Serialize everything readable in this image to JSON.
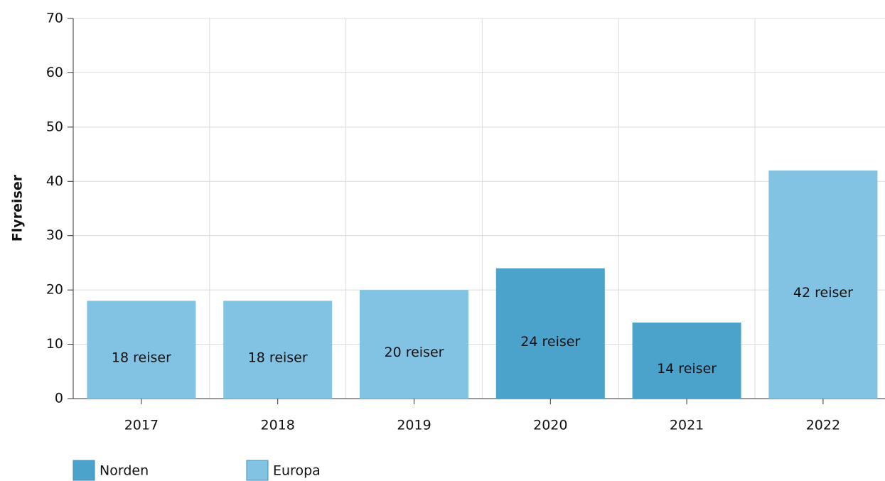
{
  "chart_data": {
    "type": "bar",
    "y_label": "Flyreiser",
    "categories": [
      "2017",
      "2018",
      "2019",
      "2020",
      "2021",
      "2022"
    ],
    "series": [
      {
        "name": "Norden",
        "color": "#4ba3cc",
        "values": [
          null,
          null,
          null,
          24,
          14,
          null
        ],
        "value_labels": [
          null,
          null,
          null,
          "24 reiser",
          "14 reiser",
          null
        ]
      },
      {
        "name": "Europa",
        "color": "#82c3e3",
        "values": [
          18,
          18,
          20,
          null,
          null,
          42
        ],
        "value_labels": [
          "18 reiser",
          "18 reiser",
          "20 reiser",
          null,
          null,
          "42 reiser"
        ]
      }
    ],
    "ylim": [
      0,
      70
    ],
    "yticks": [
      0,
      10,
      20,
      30,
      40,
      50,
      60,
      70
    ],
    "grid": true,
    "legend": "bottom-left"
  }
}
